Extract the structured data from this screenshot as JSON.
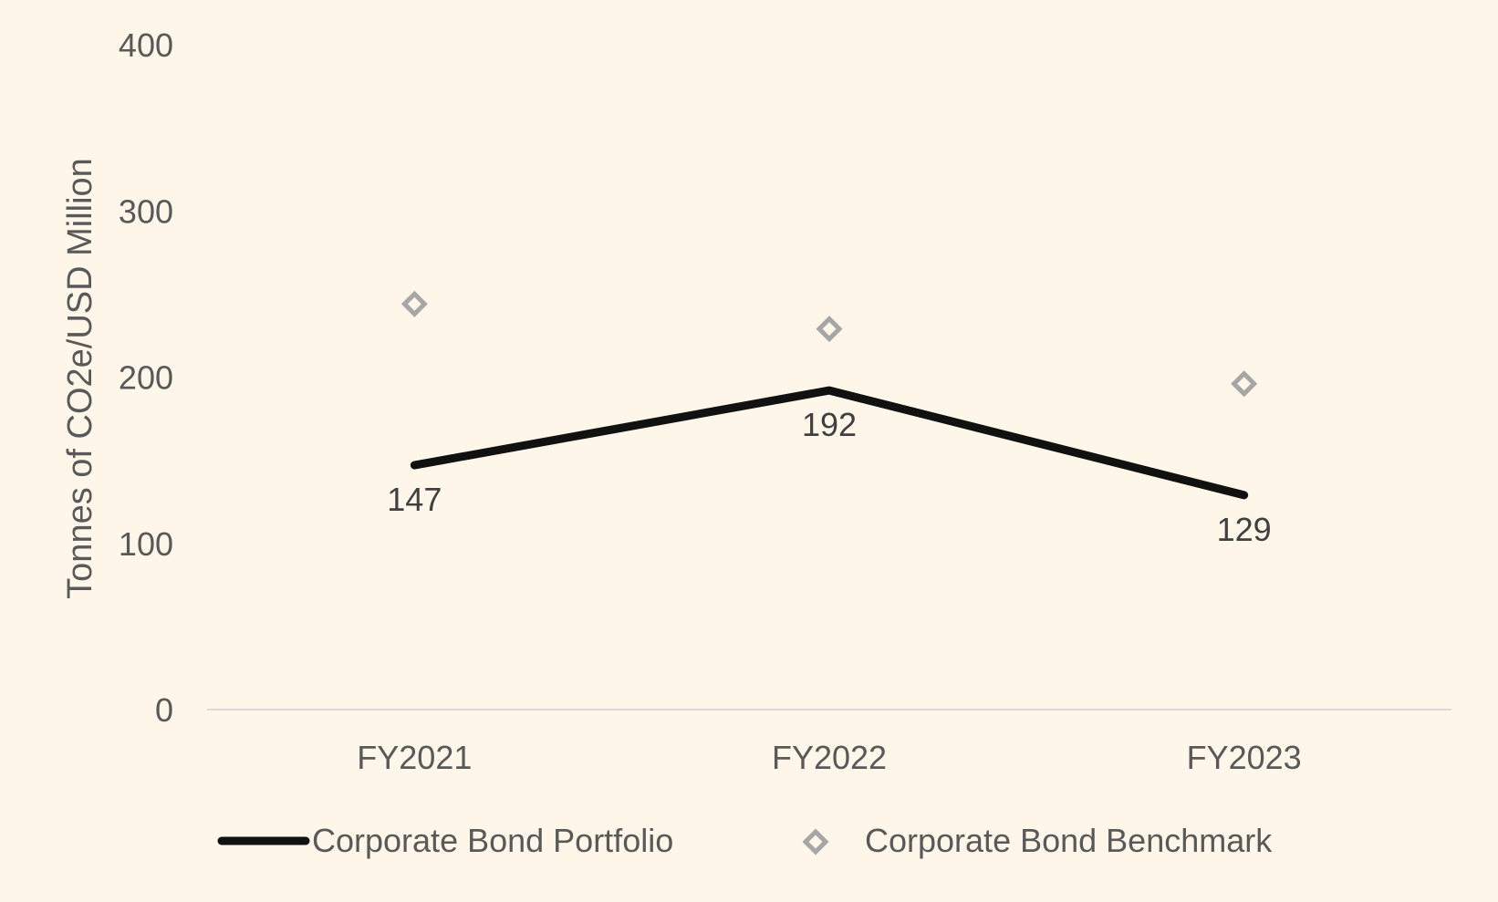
{
  "chart_data": {
    "type": "line",
    "categories": [
      "FY2021",
      "FY2022",
      "FY2023"
    ],
    "series": [
      {
        "name": "Corporate Bond Portfolio",
        "style": "line",
        "color": "#111111",
        "values": [
          147,
          192,
          129
        ],
        "data_labels": [
          "147",
          "192",
          "129"
        ]
      },
      {
        "name": "Corporate Bond Benchmark",
        "style": "marker",
        "marker": "diamond",
        "color": "#a6a6a6",
        "values": [
          244,
          229,
          196
        ]
      }
    ],
    "title": "",
    "xlabel": "",
    "ylabel": "Tonnes of CO2e/USD Million",
    "ylim": [
      0,
      400
    ],
    "yticks": [
      "0",
      "100",
      "200",
      "300",
      "400"
    ],
    "grid": false,
    "legend": "bottom",
    "background": "#fdf6e9"
  }
}
